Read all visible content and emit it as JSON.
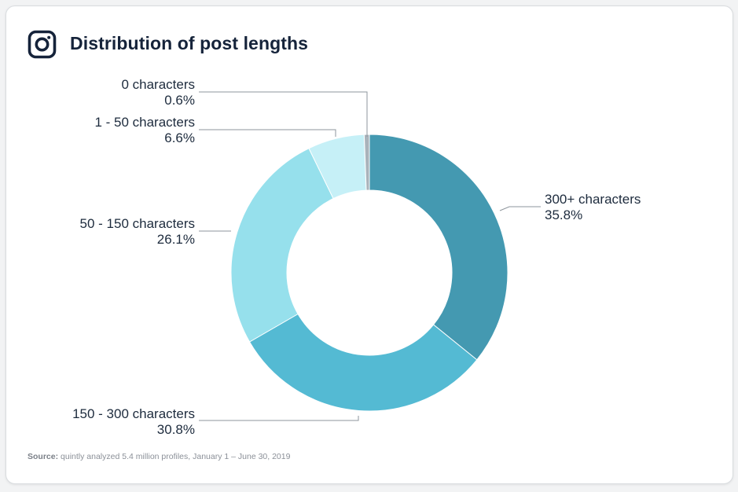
{
  "header": {
    "title": "Distribution of post lengths",
    "icon": "instagram-icon"
  },
  "chart_data": {
    "type": "pie",
    "donut": true,
    "title": "Distribution of post lengths",
    "categories": [
      "300+ characters",
      "150 - 300 characters",
      "50 - 150 characters",
      "1 - 50 characters",
      "0 characters"
    ],
    "values": [
      35.8,
      30.8,
      26.1,
      6.6,
      0.6
    ],
    "value_labels": [
      "35.8%",
      "30.8%",
      "26.1%",
      "6.6%",
      "0.6%"
    ],
    "colors": [
      "#4499b1",
      "#54bad3",
      "#96e0ec",
      "#c6f0f7",
      "#a9b3bb"
    ]
  },
  "footer": {
    "source_label": "Source:",
    "source_text": " quintly analyzed 5.4 million profiles, January 1 – June 30, 2019"
  }
}
